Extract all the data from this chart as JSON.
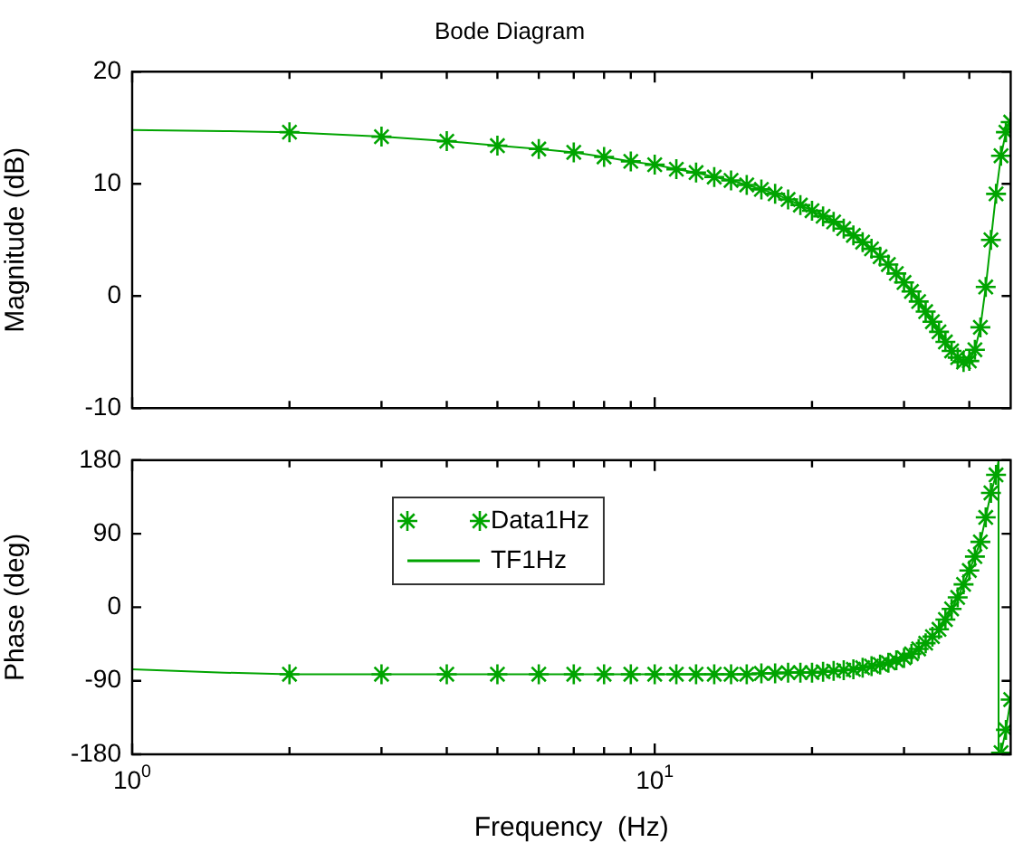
{
  "chart_data": [
    {
      "type": "scatter",
      "title": "Bode Diagram",
      "ylabel": "Magnitude (dB)",
      "log": "x",
      "xlim": [
        1,
        48
      ],
      "ylim": [
        -10,
        20
      ],
      "yticks": [
        -10,
        0,
        10,
        20
      ],
      "tick_labels": "y",
      "xticks": [
        {
          "value": 1,
          "label": null
        },
        {
          "value": 2,
          "label": null
        },
        {
          "value": 3,
          "label": null
        },
        {
          "value": 4,
          "label": null
        },
        {
          "value": 5,
          "label": null
        },
        {
          "value": 6,
          "label": null
        },
        {
          "value": 7,
          "label": null
        },
        {
          "value": 8,
          "label": null
        },
        {
          "value": 9,
          "label": null
        },
        {
          "value": 10,
          "label": null
        },
        {
          "value": 20,
          "label": null
        },
        {
          "value": 30,
          "label": null
        },
        {
          "value": 40,
          "label": null
        }
      ],
      "series": [
        {
          "type": "scatter",
          "marker": "cross",
          "color": "#00a400",
          "x": [
            2,
            3,
            4,
            5,
            6,
            7,
            8,
            9,
            10,
            11,
            12,
            13,
            14,
            15,
            16,
            17,
            18,
            19,
            20,
            21,
            22,
            23,
            24,
            25,
            26,
            27,
            28,
            29,
            30,
            31,
            32,
            33,
            34,
            35,
            36,
            37,
            38,
            39,
            40,
            41,
            42,
            43,
            44,
            45,
            46,
            47,
            48
          ],
          "values": [
            14.6,
            14.2,
            13.8,
            13.4,
            13.1,
            12.8,
            12.4,
            12.0,
            11.7,
            11.3,
            11.0,
            10.6,
            10.3,
            9.9,
            9.5,
            9.1,
            8.6,
            8.1,
            7.6,
            7.1,
            6.6,
            6.0,
            5.4,
            4.8,
            4.2,
            3.5,
            2.8,
            2.0,
            1.2,
            0.4,
            -0.5,
            -1.4,
            -2.3,
            -3.2,
            -4.1,
            -4.9,
            -5.5,
            -5.9,
            -5.8,
            -4.8,
            -2.8,
            0.8,
            5.0,
            9.1,
            12.5,
            14.6,
            15.5
          ]
        },
        {
          "type": "line",
          "marker": "none",
          "color": "#00a400",
          "x": [
            1,
            1.5,
            2,
            3,
            4,
            5,
            6,
            7,
            8,
            9,
            10,
            11,
            12,
            13,
            14,
            15,
            16,
            17,
            18,
            19,
            20,
            21,
            22,
            23,
            24,
            25,
            26,
            27,
            28,
            29,
            30,
            31,
            32,
            33,
            34,
            35,
            36,
            37,
            38,
            39,
            40,
            41,
            42,
            43,
            44,
            45,
            46,
            47,
            48
          ],
          "values": [
            14.8,
            14.7,
            14.6,
            14.2,
            13.8,
            13.4,
            13.1,
            12.8,
            12.4,
            12.0,
            11.7,
            11.3,
            11.0,
            10.6,
            10.3,
            9.9,
            9.5,
            9.1,
            8.6,
            8.1,
            7.6,
            7.1,
            6.6,
            6.0,
            5.4,
            4.8,
            4.2,
            3.5,
            2.8,
            2.0,
            1.2,
            0.4,
            -0.5,
            -1.4,
            -2.3,
            -3.2,
            -4.1,
            -4.9,
            -5.5,
            -5.9,
            -5.8,
            -4.8,
            -2.8,
            0.8,
            5.0,
            9.1,
            12.5,
            14.6,
            15.5
          ]
        }
      ]
    },
    {
      "type": "scatter",
      "xlabel": "Frequency  (Hz)",
      "ylabel": "Phase (deg)",
      "log": "x",
      "xlim": [
        1,
        48
      ],
      "ylim": [
        -180,
        180
      ],
      "yticks": [
        -180,
        -90,
        0,
        90,
        180
      ],
      "legend": "top",
      "xticks": [
        {
          "value": 1,
          "label": "10$^{0}$"
        },
        {
          "value": 2,
          "label": null
        },
        {
          "value": 3,
          "label": null
        },
        {
          "value": 4,
          "label": null
        },
        {
          "value": 5,
          "label": null
        },
        {
          "value": 6,
          "label": null
        },
        {
          "value": 7,
          "label": null
        },
        {
          "value": 8,
          "label": null
        },
        {
          "value": 9,
          "label": null
        },
        {
          "value": 10,
          "label": "10$^{1}$"
        },
        {
          "value": 20,
          "label": null
        },
        {
          "value": 30,
          "label": null
        },
        {
          "value": 40,
          "label": null
        }
      ],
      "series": [
        {
          "type": "scatter",
          "name": "Data1Hz",
          "marker": "cross",
          "color": "#00a400",
          "x": [
            2,
            3,
            4,
            5,
            6,
            7,
            8,
            9,
            10,
            11,
            12,
            13,
            14,
            15,
            16,
            17,
            18,
            19,
            20,
            21,
            22,
            23,
            24,
            25,
            26,
            27,
            28,
            29,
            30,
            31,
            32,
            33,
            34,
            35,
            36,
            37,
            38,
            39,
            40,
            41,
            42,
            43,
            44,
            45,
            46,
            47,
            48
          ],
          "values": [
            -82,
            -82,
            -82,
            -82,
            -82,
            -82,
            -82,
            -82,
            -82,
            -82,
            -82,
            -82,
            -82,
            -82,
            -81,
            -81,
            -80,
            -80,
            -80,
            -79,
            -78,
            -77,
            -76,
            -74,
            -72,
            -70,
            -68,
            -65,
            -62,
            -57,
            -51,
            -44,
            -36,
            -27,
            -15,
            -2,
            12,
            28,
            45,
            62,
            80,
            110,
            140,
            162,
            -178,
            -150,
            -113
          ]
        },
        {
          "type": "line",
          "name": "TF1Hz",
          "marker": "none",
          "color": "#00a400",
          "x": [
            1,
            1.5,
            2,
            3,
            4,
            5,
            6,
            7,
            8,
            9,
            10,
            11,
            12,
            13,
            14,
            15,
            16,
            17,
            18,
            19,
            20,
            21,
            22,
            23,
            24,
            25,
            26,
            27,
            28,
            29,
            30,
            31,
            32,
            33,
            34,
            35,
            36,
            37,
            38,
            39,
            40,
            41,
            42,
            43,
            44,
            45,
            45.5,
            45.5,
            46,
            47,
            48
          ],
          "values": [
            -76,
            -80,
            -82,
            -82,
            -82,
            -82,
            -82,
            -82,
            -82,
            -82,
            -82,
            -82,
            -82,
            -82,
            -82,
            -82,
            -81,
            -81,
            -80,
            -80,
            -80,
            -79,
            -78,
            -77,
            -76,
            -74,
            -72,
            -70,
            -68,
            -65,
            -62,
            -57,
            -51,
            -44,
            -36,
            -27,
            -15,
            -2,
            12,
            28,
            45,
            62,
            80,
            110,
            140,
            162,
            180,
            -180,
            -178,
            -150,
            -113
          ]
        }
      ]
    }
  ]
}
